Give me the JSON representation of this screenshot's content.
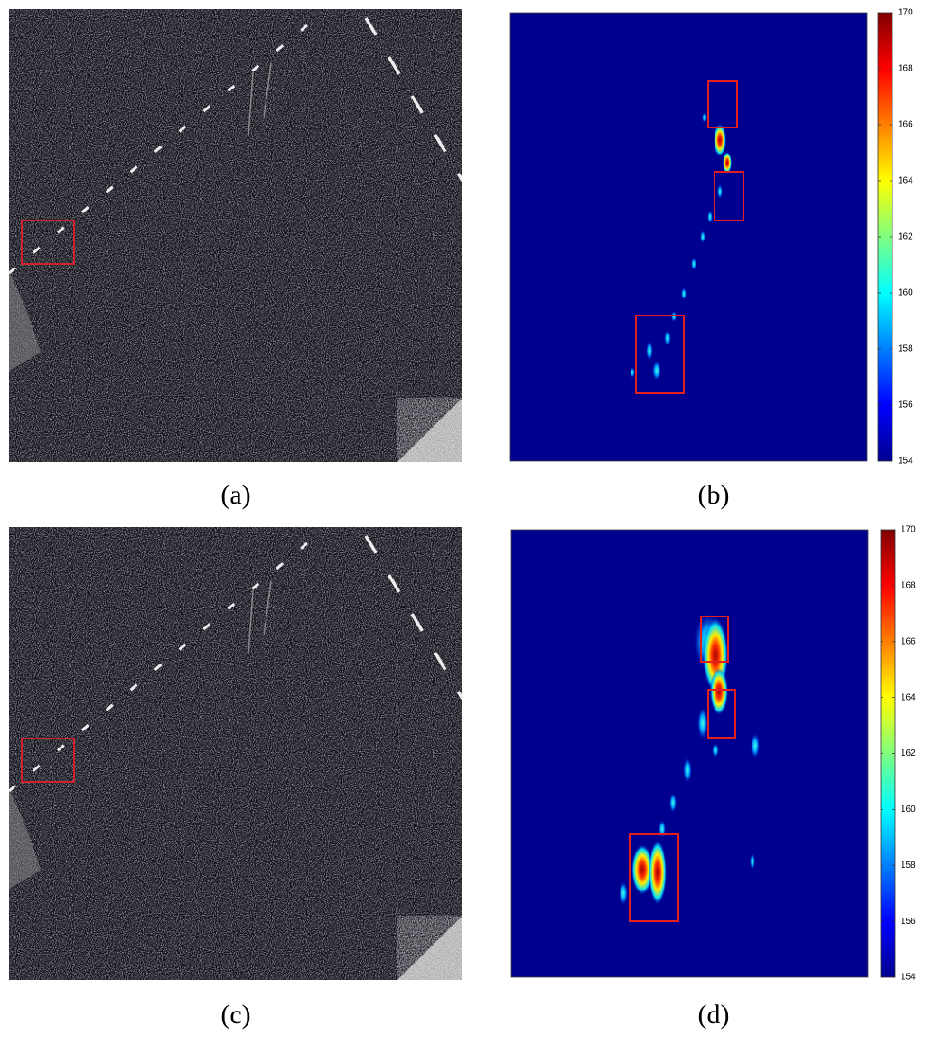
{
  "panels": [
    {
      "label": "(a)"
    },
    {
      "label": "(b)",
      "colorbar": {
        "lim": [
          154,
          170
        ],
        "ticks": [
          154,
          156,
          158,
          160,
          162,
          164,
          166,
          168,
          170
        ]
      }
    },
    {
      "label": "(c)"
    },
    {
      "label": "(d)",
      "colorbar": {
        "lim": [
          154,
          170
        ],
        "ticks": [
          154,
          156,
          158,
          160,
          162,
          164,
          166,
          168,
          170
        ]
      }
    }
  ]
}
